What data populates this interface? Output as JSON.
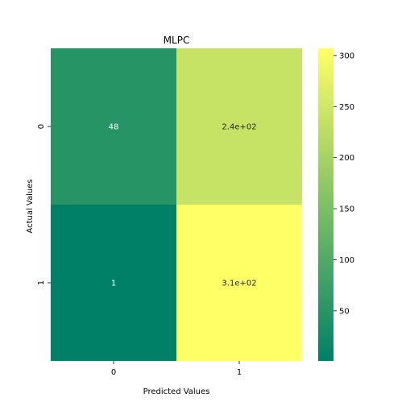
{
  "chart_data": {
    "type": "heatmap",
    "title": "MLPC",
    "xlabel": "Predicted Values",
    "ylabel": "Actual Values",
    "x_categories": [
      "0",
      "1"
    ],
    "y_categories": [
      "0",
      "1"
    ],
    "values": [
      [
        48,
        240
      ],
      [
        1,
        310
      ]
    ],
    "annotations": [
      [
        "48",
        "2.4e+02"
      ],
      [
        "1",
        "3.1e+02"
      ]
    ],
    "colorbar": {
      "min": 1,
      "max": 307,
      "ticks": [
        50,
        100,
        150,
        200,
        250,
        300
      ],
      "tick_labels": [
        "50",
        "100",
        "150",
        "200",
        "250",
        "300"
      ],
      "colormap": "summer"
    },
    "colors": {
      "low": "#008066",
      "high": "#ffff66"
    }
  }
}
